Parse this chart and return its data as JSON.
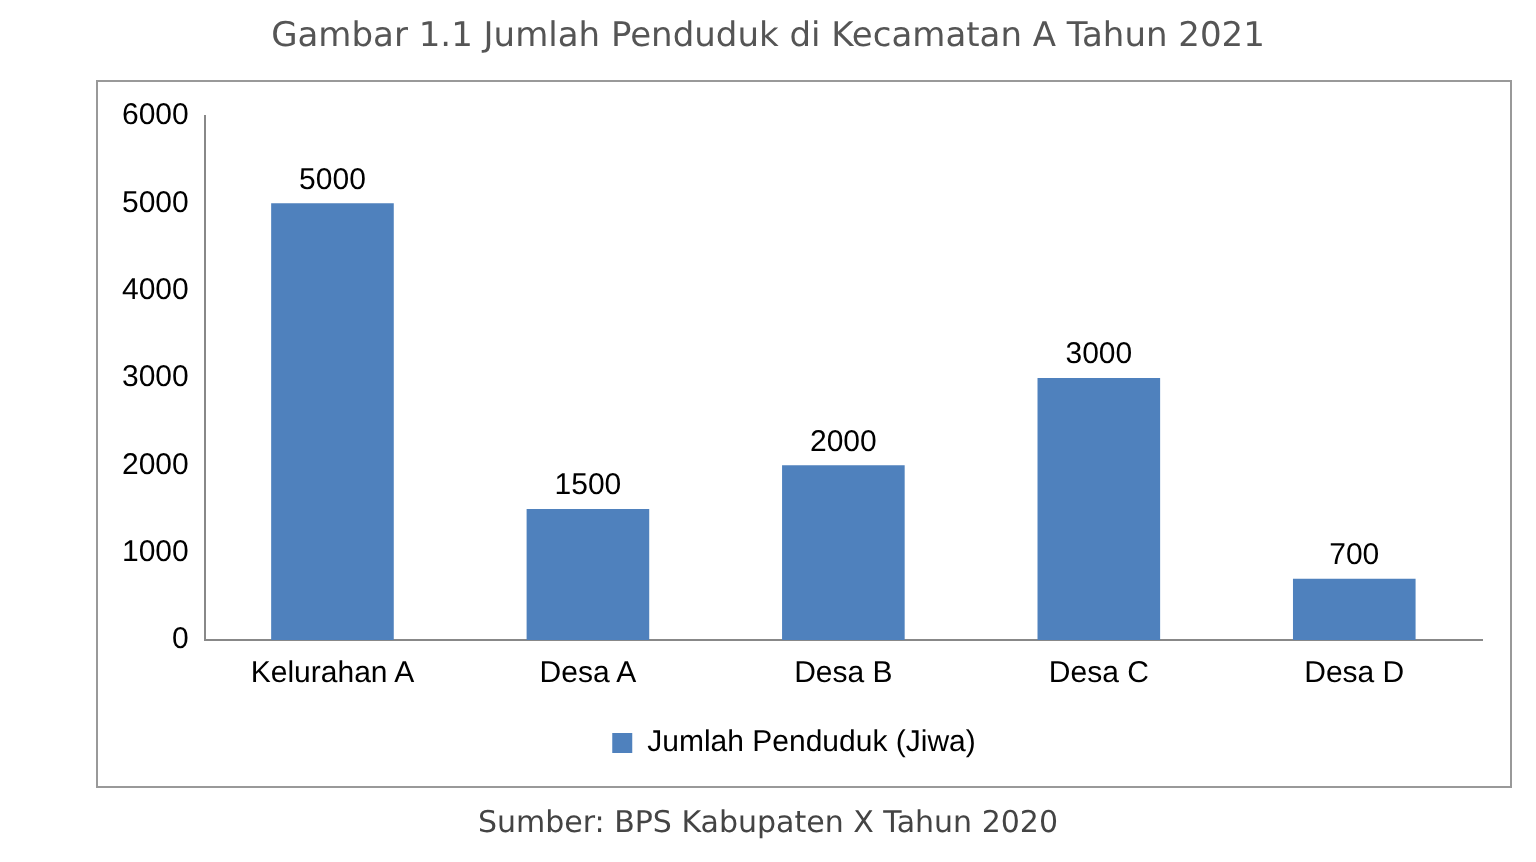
{
  "chart_data": {
    "type": "bar",
    "title": "Gambar 1.1 Jumlah Penduduk di Kecamatan A Tahun 2021",
    "categories": [
      "Kelurahan A",
      "Desa A",
      "Desa B",
      "Desa C",
      "Desa D"
    ],
    "series": [
      {
        "name": "Jumlah Penduduk (Jiwa)",
        "color": "#4f81bd",
        "values": [
          5000,
          1500,
          2000,
          3000,
          700
        ]
      }
    ],
    "ylim": [
      0,
      6000
    ],
    "yticks": [
      0,
      1000,
      2000,
      3000,
      4000,
      5000,
      6000
    ],
    "data_labels": true,
    "legend": "bottom",
    "grid": false,
    "annotations": [
      "Sumber: BPS Kabupaten X Tahun 2020"
    ]
  }
}
